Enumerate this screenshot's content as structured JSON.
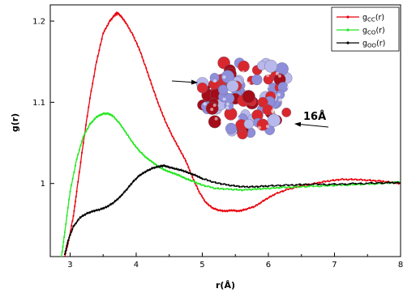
{
  "chart_data": {
    "type": "line",
    "title": "",
    "xlabel": "r(Å)",
    "ylabel": "g(r)",
    "xlim": [
      2.7,
      8.0
    ],
    "ylim": [
      0.91,
      1.22
    ],
    "xticks": [
      3,
      4,
      5,
      6,
      7,
      8
    ],
    "yticks": [
      {
        "value": 1.0,
        "label": "1"
      },
      {
        "value": 1.1,
        "label": "1.1"
      },
      {
        "value": 1.2,
        "label": "1.2"
      }
    ],
    "grid": false,
    "legend_position": "top-right",
    "series": [
      {
        "name": "gcc(r)",
        "legend_base": "g",
        "legend_sub": "CC",
        "legend_suffix": "(r)",
        "color": "#e8000b",
        "x": [
          2.92,
          2.98,
          3.05,
          3.1,
          3.2,
          3.3,
          3.4,
          3.5,
          3.6,
          3.68,
          3.72,
          3.78,
          3.85,
          3.95,
          4.05,
          4.15,
          4.25,
          4.35,
          4.45,
          4.55,
          4.65,
          4.75,
          4.85,
          4.95,
          5.05,
          5.15,
          5.25,
          5.35,
          5.45,
          5.55,
          5.65,
          5.8,
          5.95,
          6.1,
          6.3,
          6.5,
          6.7,
          6.9,
          7.1,
          7.3,
          7.5,
          7.7,
          7.9,
          8.0
        ],
        "y": [
          0.91,
          0.93,
          0.96,
          0.99,
          1.05,
          1.105,
          1.15,
          1.185,
          1.2,
          1.208,
          1.21,
          1.205,
          1.197,
          1.183,
          1.165,
          1.142,
          1.118,
          1.095,
          1.075,
          1.058,
          1.043,
          1.028,
          1.008,
          0.99,
          0.977,
          0.97,
          0.967,
          0.966,
          0.967,
          0.966,
          0.968,
          0.972,
          0.98,
          0.987,
          0.993,
          0.997,
          1.0,
          1.003,
          1.005,
          1.005,
          1.004,
          1.003,
          1.001,
          1.0
        ]
      },
      {
        "name": "gco(r)",
        "legend_base": "g",
        "legend_sub": "CO",
        "legend_suffix": "(r)",
        "color": "#22e81e",
        "x": [
          2.87,
          2.92,
          3.0,
          3.1,
          3.2,
          3.3,
          3.4,
          3.5,
          3.58,
          3.65,
          3.75,
          3.85,
          3.95,
          4.05,
          4.15,
          4.25,
          4.35,
          4.45,
          4.55,
          4.65,
          4.75,
          4.85,
          5.0,
          5.2,
          5.4,
          5.6,
          5.8,
          6.0,
          6.2,
          6.5,
          6.8,
          7.1,
          7.4,
          7.7,
          8.0
        ],
        "y": [
          0.91,
          0.94,
          0.99,
          1.03,
          1.058,
          1.073,
          1.082,
          1.086,
          1.086,
          1.083,
          1.074,
          1.062,
          1.05,
          1.04,
          1.032,
          1.026,
          1.02,
          1.016,
          1.013,
          1.01,
          1.006,
          1.003,
          0.998,
          0.994,
          0.993,
          0.992,
          0.993,
          0.994,
          0.995,
          0.996,
          0.997,
          0.998,
          0.999,
          1.0,
          1.002
        ]
      },
      {
        "name": "goo(r)",
        "legend_base": "g",
        "legend_sub": "OO",
        "legend_suffix": "(r)",
        "color": "#000000",
        "x": [
          2.92,
          2.97,
          3.05,
          3.15,
          3.25,
          3.35,
          3.45,
          3.55,
          3.65,
          3.75,
          3.85,
          3.95,
          4.05,
          4.15,
          4.25,
          4.35,
          4.42,
          4.5,
          4.6,
          4.7,
          4.8,
          4.9,
          5.0,
          5.2,
          5.4,
          5.6,
          5.8,
          6.0,
          6.3,
          6.6,
          7.0,
          7.4,
          7.8,
          8.0
        ],
        "y": [
          0.913,
          0.93,
          0.947,
          0.958,
          0.963,
          0.966,
          0.968,
          0.971,
          0.976,
          0.983,
          0.992,
          1.002,
          1.01,
          1.015,
          1.019,
          1.021,
          1.022,
          1.02,
          1.018,
          1.016,
          1.013,
          1.01,
          1.006,
          1.001,
          0.998,
          0.996,
          0.996,
          0.997,
          0.998,
          0.999,
          0.999,
          1.0,
          1.001,
          1.001
        ]
      }
    ],
    "annotations": [
      {
        "text": "16Å"
      }
    ]
  },
  "inset": {
    "description_icon": "molecule-cluster-icon",
    "colors": [
      "#d9272e",
      "#8e8edb",
      "#b8b8ec",
      "#a40d18"
    ]
  }
}
